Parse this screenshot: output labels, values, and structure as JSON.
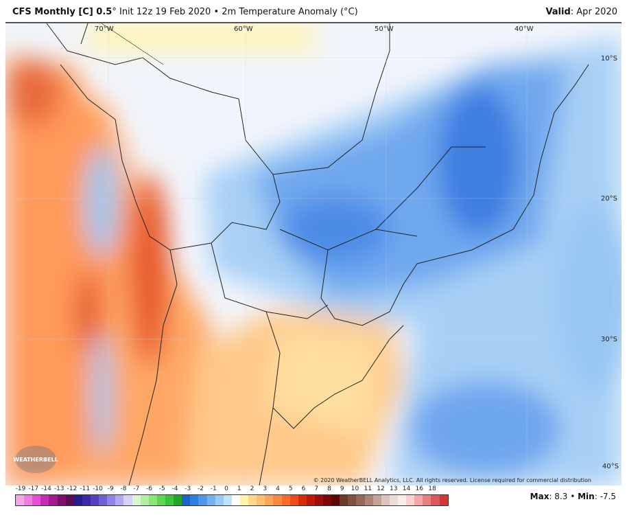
{
  "header": {
    "model": "CFS Monthly [C] 0.5",
    "degree": "°",
    "init": "Init 12z 19 Feb 2020",
    "bullet": "•",
    "field": "2m Temperature Anomaly (°C)",
    "valid_label": "Valid",
    "valid_value": ": Apr 2020"
  },
  "map": {
    "lon_labels": [
      "70°W",
      "60°W",
      "50°W",
      "40°W"
    ],
    "lat_labels": [
      "10°S",
      "20°S",
      "30°S",
      "40°S"
    ],
    "copyright": "© 2020 WeatherBELL Analytics, LLC. All rights reserved. License required for commercial distribution",
    "logo": "WEATHERBELL"
  },
  "colorbar": {
    "ticks": [
      "-19",
      "-17",
      "-14",
      "-13",
      "-12",
      "-11",
      "-10",
      "-9",
      "-8",
      "-7",
      "-6",
      "-5",
      "-4",
      "-3",
      "-2",
      "-1",
      "0",
      "1",
      "2",
      "3",
      "4",
      "5",
      "6",
      "7",
      "8",
      "9",
      "10",
      "11",
      "12",
      "13",
      "14",
      "16",
      "18"
    ],
    "colors": [
      "#f3a6e8",
      "#ee7ee0",
      "#e54fd6",
      "#c92bb5",
      "#a3198f",
      "#7e0f6f",
      "#5c0a55",
      "#2a1a8c",
      "#3a2aa8",
      "#5540c0",
      "#7060d8",
      "#8f82e8",
      "#b0a8f2",
      "#d6d2f8",
      "#d8f5d0",
      "#b0f0a0",
      "#85e870",
      "#5cd850",
      "#3cc43a",
      "#20a820",
      "#1c64d0",
      "#2e7fe2",
      "#4d98ee",
      "#73b3f4",
      "#98cbf7",
      "#bde4fa",
      "#ffffff",
      "#fff5a8",
      "#ffd88a",
      "#ffbf70",
      "#ffa458",
      "#ff8840",
      "#ff6a2a",
      "#f04a18",
      "#d82a08",
      "#c01808",
      "#a00c08",
      "#7e0606",
      "#5e0404",
      "#6b3a2a",
      "#805040",
      "#976858",
      "#ae8478",
      "#c4a298",
      "#dcc4bc",
      "#ecdcd6",
      "#f6ece8",
      "#fbd0d0",
      "#f3a8a8",
      "#e88080",
      "#dc5858",
      "#d03838"
    ]
  },
  "stats": {
    "max_label": "Max",
    "max_value": ": 8.3",
    "sep": " • ",
    "min_label": "Min",
    "min_value": ": -7.5"
  }
}
